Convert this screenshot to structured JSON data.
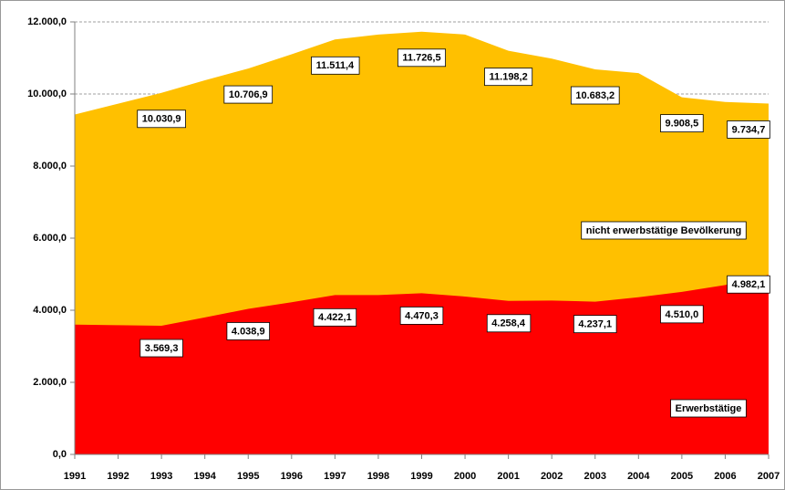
{
  "chart_data": {
    "type": "area",
    "categories": [
      "1991",
      "1992",
      "1993",
      "1994",
      "1995",
      "1996",
      "1997",
      "1998",
      "1999",
      "2000",
      "2001",
      "2002",
      "2003",
      "2004",
      "2005",
      "2006",
      "2007"
    ],
    "series": [
      {
        "name": "nicht erwerbstätige Bevölkerung",
        "color": "#ffc000",
        "values": [
          9430,
          9730,
          10030.9,
          10380,
          10706.9,
          11100,
          11511.4,
          11650,
          11726.5,
          11650,
          11198.2,
          10980,
          10683.2,
          10580,
          9908.5,
          9780,
          9734.7
        ],
        "value_labels": [
          null,
          null,
          "10.030,9",
          null,
          "10.706,9",
          null,
          "11.511,4",
          null,
          "11.726,5",
          null,
          "11.198,2",
          null,
          "10.683,2",
          null,
          "9.908,5",
          null,
          "9.734,7"
        ]
      },
      {
        "name": "Erwerbstätige",
        "color": "#ff0000",
        "values": [
          3600,
          3585,
          3569.3,
          3800,
          4038.9,
          4220,
          4422.1,
          4420,
          4470.3,
          4380,
          4258.4,
          4270,
          4237.1,
          4360,
          4510.0,
          4700,
          4982.1
        ],
        "value_labels": [
          null,
          null,
          "3.569,3",
          null,
          "4.038,9",
          null,
          "4.422,1",
          null,
          "4.470,3",
          null,
          "4.258,4",
          null,
          "4.237,1",
          null,
          "4.510,0",
          null,
          "4.982,1"
        ]
      }
    ],
    "ylim": [
      0,
      12000
    ],
    "yticks": [
      {
        "value": 0,
        "label": "0,0"
      },
      {
        "value": 2000,
        "label": "2.000,0"
      },
      {
        "value": 4000,
        "label": "4.000,0"
      },
      {
        "value": 6000,
        "label": "6.000,0"
      },
      {
        "value": 8000,
        "label": "8.000,0"
      },
      {
        "value": 10000,
        "label": "10.000,0"
      },
      {
        "value": 12000,
        "label": "12.000,0"
      }
    ],
    "grid": true
  }
}
